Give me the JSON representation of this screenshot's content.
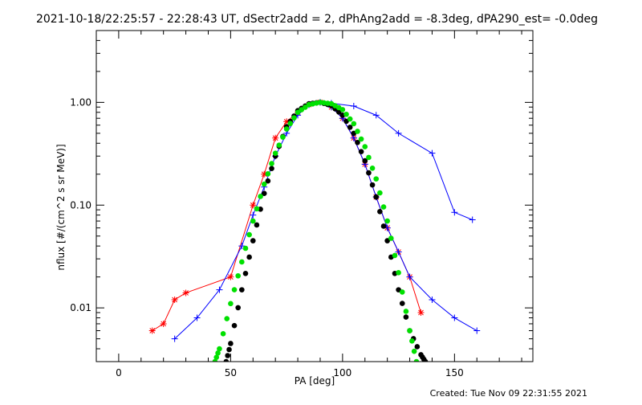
{
  "chart_data": {
    "type": "line",
    "title": "2021-10-18/22:25:57 - 22:28:43 UT, dSectr2add = 2, dPhAng2add = -8.3deg, dPA290_est= -0.0deg",
    "xlabel": "PA [deg]",
    "ylabel": "nflux [#/(cm^2 s sr MeV)]",
    "xlim": [
      -10,
      185
    ],
    "ylim": [
      0.003,
      5.0
    ],
    "yscale": "log",
    "grid": false,
    "x_ticks": [
      {
        "value": 0,
        "label": "0"
      },
      {
        "value": 50,
        "label": "50"
      },
      {
        "value": 100,
        "label": "100"
      },
      {
        "value": 150,
        "label": "150"
      }
    ],
    "y_ticks": [
      {
        "value": 0.01,
        "label": "0.01"
      },
      {
        "value": 0.1,
        "label": "0.10"
      },
      {
        "value": 1.0,
        "label": "1.00"
      }
    ],
    "series": [
      {
        "color": "#ff0000",
        "marker": "asterisk",
        "x": [
          15,
          20,
          25,
          30,
          50,
          60,
          65,
          70,
          75,
          80,
          85,
          90,
          95,
          100,
          105,
          110,
          115,
          120,
          125,
          130,
          135
        ],
        "y": [
          0.006,
          0.007,
          0.012,
          0.014,
          0.02,
          0.1,
          0.2,
          0.45,
          0.65,
          0.8,
          0.95,
          1.0,
          0.9,
          0.7,
          0.45,
          0.25,
          0.12,
          0.06,
          0.035,
          0.02,
          0.009
        ]
      },
      {
        "color": "#0000ff",
        "marker": "plus",
        "x": [
          25,
          35,
          45,
          55,
          60,
          65,
          70,
          75,
          80,
          85,
          90,
          95,
          100,
          105,
          110,
          115,
          120,
          125,
          130,
          140,
          150,
          160
        ],
        "y": [
          0.005,
          0.008,
          0.015,
          0.04,
          0.08,
          0.15,
          0.3,
          0.5,
          0.75,
          0.95,
          1.0,
          0.9,
          0.7,
          0.45,
          0.25,
          0.12,
          0.06,
          0.035,
          0.02,
          0.012,
          0.008,
          0.006
        ]
      },
      {
        "color": "#0000ff",
        "marker": "plus",
        "x": [
          85,
          95,
          105,
          115,
          125,
          140,
          150,
          158
        ],
        "y": [
          0.95,
          0.98,
          0.92,
          0.75,
          0.5,
          0.32,
          0.085,
          0.072
        ]
      },
      {
        "color": "#000000",
        "marker": "filled-circle",
        "x": [
          48,
          50,
          55,
          60,
          65,
          70,
          75,
          80,
          85,
          90,
          95,
          100,
          105,
          110,
          115,
          120,
          125,
          130,
          135,
          137
        ],
        "y": [
          0.003,
          0.0045,
          0.015,
          0.045,
          0.13,
          0.3,
          0.58,
          0.83,
          0.97,
          1.0,
          0.93,
          0.75,
          0.5,
          0.27,
          0.12,
          0.045,
          0.015,
          0.006,
          0.0035,
          0.003
        ]
      },
      {
        "color": "#00e000",
        "marker": "filled-circle",
        "x": [
          43,
          45,
          50,
          55,
          60,
          65,
          70,
          75,
          80,
          85,
          90,
          95,
          100,
          105,
          110,
          115,
          120,
          125,
          130,
          133
        ],
        "y": [
          0.003,
          0.004,
          0.011,
          0.028,
          0.07,
          0.16,
          0.32,
          0.55,
          0.8,
          0.95,
          1.0,
          0.97,
          0.85,
          0.62,
          0.37,
          0.18,
          0.07,
          0.022,
          0.006,
          0.003
        ]
      }
    ]
  },
  "footer": {
    "created_label": "Created: Tue Nov 09 22:31:55 2021"
  }
}
